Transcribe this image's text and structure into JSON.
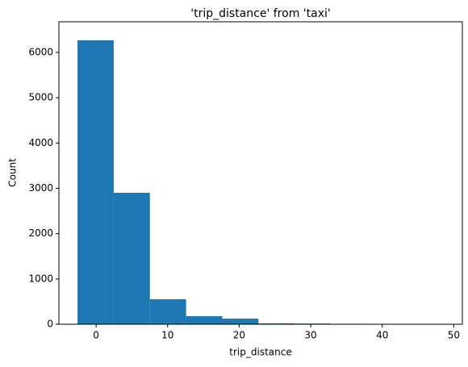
{
  "chart_data": {
    "type": "histogram",
    "title": "'trip_distance' from 'taxi'",
    "x_label": "trip_distance",
    "y_label": "Count",
    "bins": [
      -2.6,
      2.46,
      7.52,
      12.58,
      17.64,
      22.7,
      27.76,
      32.82,
      37.88,
      42.94,
      48
    ],
    "values": [
      6267,
      2902,
      552,
      178,
      125,
      20,
      15,
      10,
      5,
      3
    ],
    "color": "#1f77b4",
    "xlim": [
      -5.2,
      51.2
    ],
    "xticks": [
      0,
      10,
      20,
      30,
      40,
      50
    ],
    "ylim": [
      0,
      6676
    ],
    "yticks": [
      0,
      1000,
      2000,
      3000,
      4000,
      5000,
      6000
    ]
  }
}
